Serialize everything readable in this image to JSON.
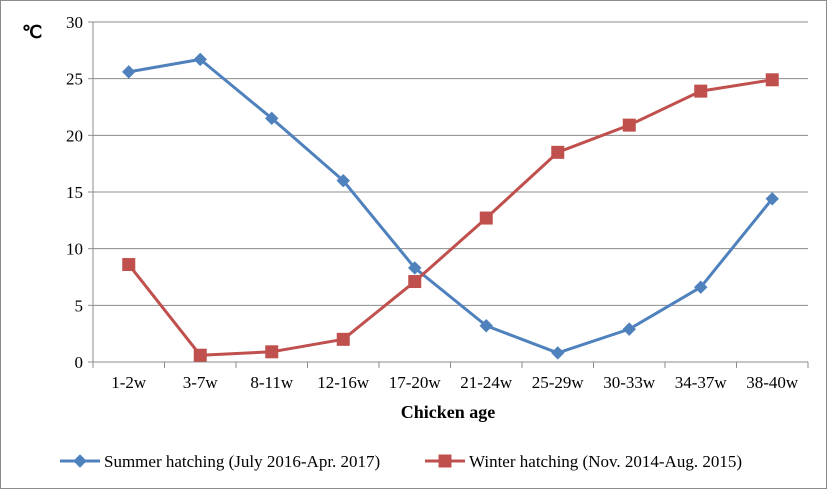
{
  "chart_data": {
    "type": "line",
    "title": "",
    "xlabel": "Chicken age",
    "ylabel": "℃",
    "ylim": [
      0,
      30
    ],
    "yticks": [
      0,
      5,
      10,
      15,
      20,
      25,
      30
    ],
    "grid": true,
    "legend_position": "bottom",
    "categories": [
      "1-2w",
      "3-7w",
      "8-11w",
      "12-16w",
      "17-20w",
      "21-24w",
      "25-29w",
      "30-33w",
      "34-37w",
      "38-40w"
    ],
    "series": [
      {
        "name": "Summer hatching (July 2016-Apr. 2017)",
        "color": "#4f81bd",
        "marker": "diamond",
        "values": [
          25.6,
          26.7,
          21.5,
          16.0,
          8.3,
          3.2,
          0.8,
          2.9,
          6.6,
          14.4
        ]
      },
      {
        "name": "Winter hatching (Nov. 2014-Aug. 2015)",
        "color": "#c0504d",
        "marker": "square",
        "values": [
          8.6,
          0.6,
          0.9,
          2.0,
          7.1,
          12.7,
          18.5,
          20.9,
          23.9,
          24.9
        ]
      }
    ]
  }
}
